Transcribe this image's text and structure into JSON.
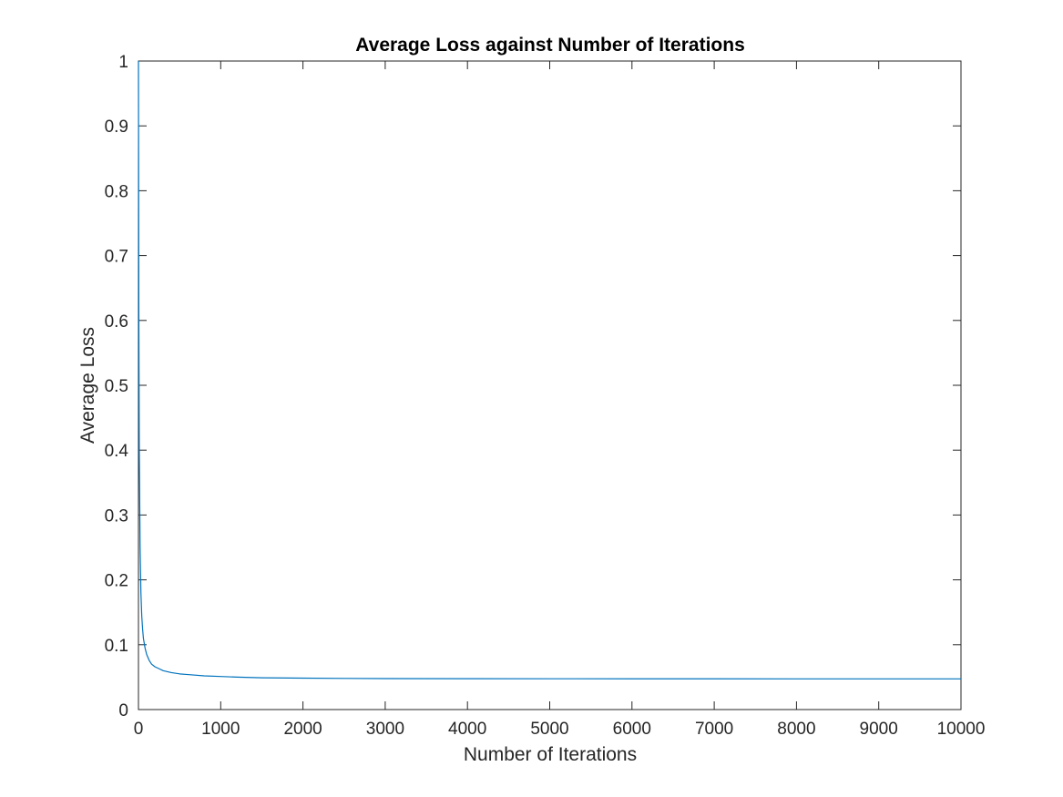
{
  "chart_data": {
    "type": "line",
    "title": "Average Loss against Number of Iterations",
    "xlabel": "Number of Iterations",
    "ylabel": "Average Loss",
    "xlim": [
      0,
      10000
    ],
    "ylim": [
      0,
      1
    ],
    "xticks": [
      "0",
      "1000",
      "2000",
      "3000",
      "4000",
      "5000",
      "6000",
      "7000",
      "8000",
      "9000",
      "10000"
    ],
    "yticks": [
      "0",
      "0.1",
      "0.2",
      "0.3",
      "0.4",
      "0.5",
      "0.6",
      "0.7",
      "0.8",
      "0.9",
      "1"
    ],
    "grid": false,
    "legend": "none",
    "series": [
      {
        "color": "#0072BD",
        "x": [
          0,
          5,
          10,
          20,
          30,
          40,
          50,
          60,
          80,
          100,
          130,
          160,
          200,
          250,
          300,
          400,
          500,
          600,
          800,
          1000,
          1200,
          1500,
          2000,
          2500,
          3000,
          4000,
          5000,
          6000,
          7000,
          8000,
          9000,
          10000
        ],
        "y": [
          1.0,
          0.6,
          0.4,
          0.25,
          0.18,
          0.145,
          0.125,
          0.11,
          0.095,
          0.085,
          0.076,
          0.07,
          0.066,
          0.063,
          0.06,
          0.057,
          0.055,
          0.054,
          0.052,
          0.051,
          0.05,
          0.049,
          0.0485,
          0.048,
          0.0478,
          0.0476,
          0.0475,
          0.0474,
          0.0474,
          0.0473,
          0.0473,
          0.0473
        ]
      }
    ]
  }
}
